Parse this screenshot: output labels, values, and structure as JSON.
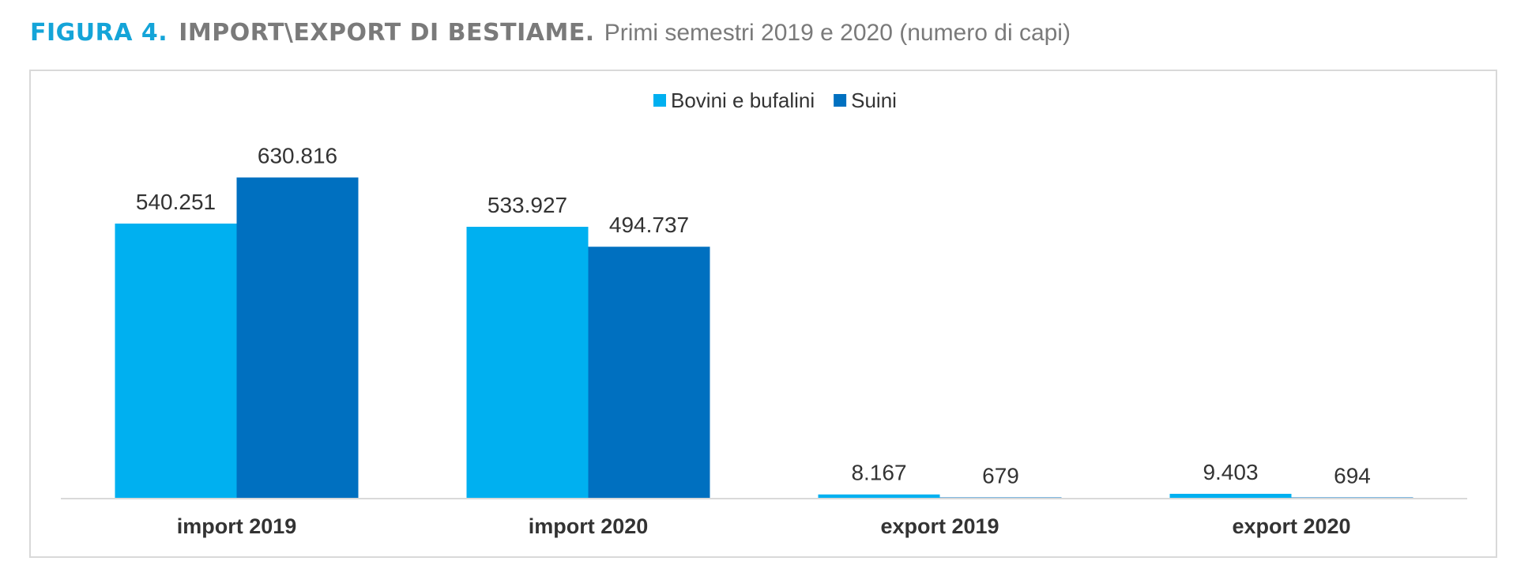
{
  "figure": {
    "label": "FIGURA 4.",
    "title": "IMPORT\\EXPORT DI BESTIAME.",
    "subtitle": "Primi semestri 2019 e 2020 (numero di capi)"
  },
  "colors": {
    "bovini": "#00b0f0",
    "suini": "#0070c0",
    "axis": "#d9d9d9",
    "title_accent": "#14a4d8",
    "title_gray": "#7a7a7a"
  },
  "chart_data": {
    "type": "bar",
    "title": "IMPORT\\EXPORT DI BESTIAME.",
    "subtitle": "Primi semestri 2019 e 2020 (numero di capi)",
    "categories": [
      "import 2019",
      "import 2020",
      "export 2019",
      "export 2020"
    ],
    "series": [
      {
        "name": "Bovini e bufalini",
        "values": [
          540251,
          533927,
          8167,
          9403
        ],
        "labels": [
          "540.251",
          "533.927",
          "8.167",
          "9.403"
        ]
      },
      {
        "name": "Suini",
        "values": [
          630816,
          494737,
          679,
          694
        ],
        "labels": [
          "630.816",
          "494.737",
          "679",
          "694"
        ]
      }
    ],
    "xlabel": "",
    "ylabel": "",
    "ylim": [
      0,
      700000
    ],
    "grid": false,
    "legend": "top-center"
  }
}
